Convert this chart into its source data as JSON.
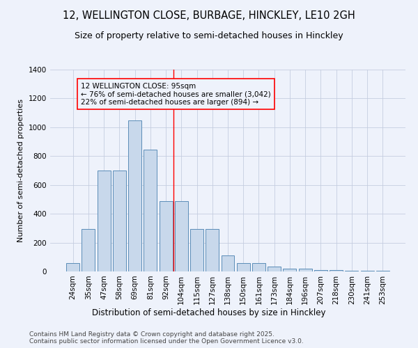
{
  "title": "12, WELLINGTON CLOSE, BURBAGE, HINCKLEY, LE10 2GH",
  "subtitle": "Size of property relative to semi-detached houses in Hinckley",
  "xlabel": "Distribution of semi-detached houses by size in Hinckley",
  "ylabel": "Number of semi-detached properties",
  "bar_labels": [
    "24sqm",
    "35sqm",
    "47sqm",
    "58sqm",
    "69sqm",
    "81sqm",
    "92sqm",
    "104sqm",
    "115sqm",
    "127sqm",
    "138sqm",
    "150sqm",
    "161sqm",
    "173sqm",
    "184sqm",
    "196sqm",
    "207sqm",
    "218sqm",
    "230sqm",
    "241sqm",
    "253sqm"
  ],
  "bar_values": [
    60,
    295,
    700,
    700,
    1050,
    845,
    490,
    490,
    295,
    295,
    110,
    60,
    60,
    35,
    20,
    20,
    10,
    10,
    5,
    5,
    5
  ],
  "bar_color": "#c8d8eb",
  "bar_edge_color": "#5b8db8",
  "annotation_text": "12 WELLINGTON CLOSE: 95sqm\n← 76% of semi-detached houses are smaller (3,042)\n22% of semi-detached houses are larger (894) →",
  "vline_x_index": 6.5,
  "footnote": "Contains HM Land Registry data © Crown copyright and database right 2025.\nContains public sector information licensed under the Open Government Licence v3.0.",
  "background_color": "#eef2fb",
  "grid_color": "#c5cde0",
  "ylim": [
    0,
    1400
  ],
  "title_fontsize": 10.5,
  "subtitle_fontsize": 9,
  "annot_fontsize": 7.5,
  "xlabel_fontsize": 8.5,
  "ylabel_fontsize": 8,
  "tick_fontsize": 7.5,
  "footnote_fontsize": 6.5
}
